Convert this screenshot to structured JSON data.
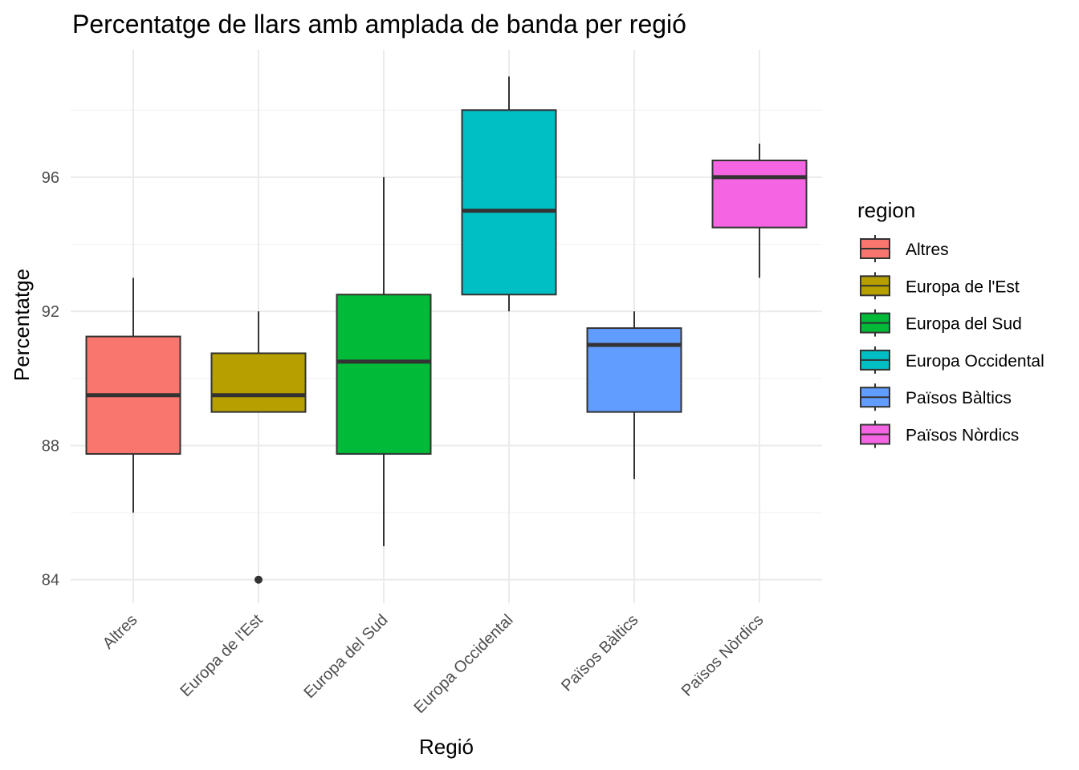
{
  "chart_data": {
    "type": "boxplot",
    "title": "Percentatge de llars amb amplada de banda per regió",
    "xlabel": "Regió",
    "ylabel": "Percentatge",
    "ylim": [
      83.3,
      99.8
    ],
    "yticks": [
      84,
      88,
      92,
      96
    ],
    "grid": true,
    "legend": {
      "title": "region",
      "position": "right"
    },
    "categories": [
      "Altres",
      "Europa de l'Est",
      "Europa del Sud",
      "Europa Occidental",
      "Països Bàltics",
      "Països Nòrdics"
    ],
    "colors": [
      "#F8766D",
      "#B79F00",
      "#00BA38",
      "#00BFC4",
      "#619CFF",
      "#F564E3"
    ],
    "boxes": [
      {
        "category": "Altres",
        "min": 86,
        "q1": 87.75,
        "median": 89.5,
        "q3": 91.25,
        "max": 93,
        "outliers": []
      },
      {
        "category": "Europa de l'Est",
        "min": 89,
        "q1": 89,
        "median": 89.5,
        "q3": 90.75,
        "max": 92,
        "outliers": [
          84
        ]
      },
      {
        "category": "Europa del Sud",
        "min": 85,
        "q1": 87.75,
        "median": 90.5,
        "q3": 92.5,
        "max": 96,
        "outliers": []
      },
      {
        "category": "Europa Occidental",
        "min": 92,
        "q1": 92.5,
        "median": 95,
        "q3": 98,
        "max": 99,
        "outliers": []
      },
      {
        "category": "Països Bàltics",
        "min": 87,
        "q1": 89,
        "median": 91,
        "q3": 91.5,
        "max": 92,
        "outliers": []
      },
      {
        "category": "Països Nòrdics",
        "min": 93,
        "q1": 94.5,
        "median": 96,
        "q3": 96.5,
        "max": 97,
        "outliers": []
      }
    ]
  }
}
